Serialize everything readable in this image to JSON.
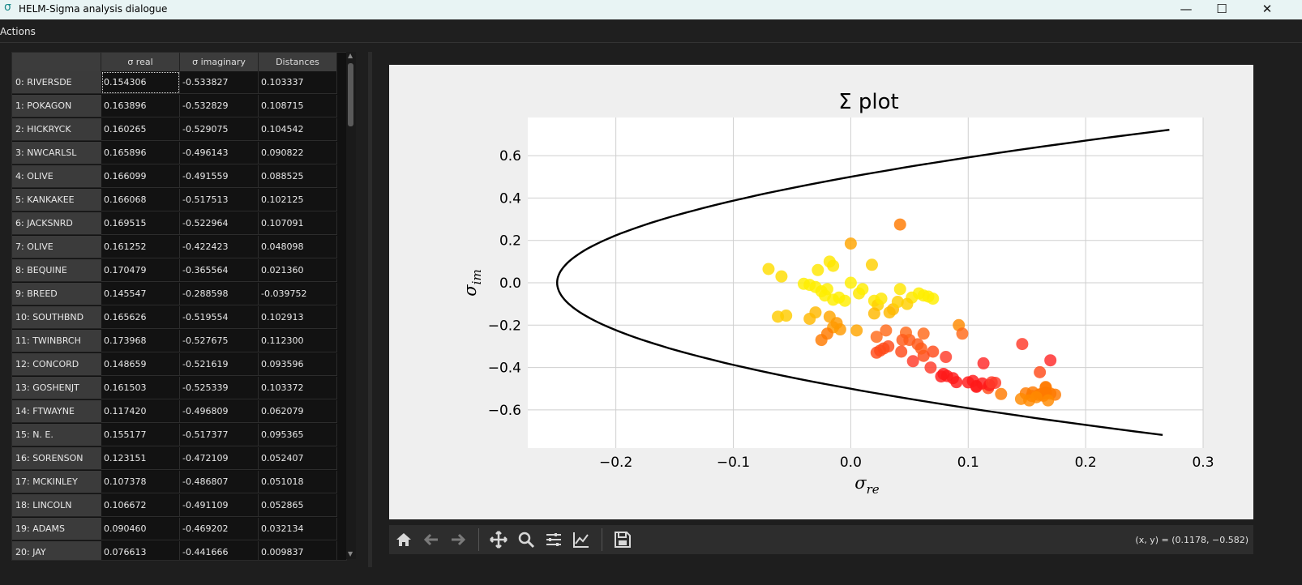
{
  "window": {
    "title": "HELM-Sigma analysis dialogue",
    "app_icon": "σ",
    "min_glyph": "—",
    "max_glyph": "☐",
    "close_glyph": "✕"
  },
  "menu": {
    "actions": "Actions"
  },
  "table": {
    "columns": [
      "σ real",
      "σ imaginary",
      "Distances"
    ],
    "rows": [
      {
        "label": "0: RIVERSDE",
        "re": "0.154306",
        "im": "-0.533827",
        "dist": "0.103337"
      },
      {
        "label": "1: POKAGON",
        "re": "0.163896",
        "im": "-0.532829",
        "dist": "0.108715"
      },
      {
        "label": "2: HICKRYCK",
        "re": "0.160265",
        "im": "-0.529075",
        "dist": "0.104542"
      },
      {
        "label": "3: NWCARLSL",
        "re": "0.165896",
        "im": "-0.496143",
        "dist": "0.090822"
      },
      {
        "label": "4: OLIVE",
        "re": "0.166099",
        "im": "-0.491559",
        "dist": "0.088525"
      },
      {
        "label": "5: KANKAKEE",
        "re": "0.166068",
        "im": "-0.517513",
        "dist": "0.102125"
      },
      {
        "label": "6: JACKSNRD",
        "re": "0.169515",
        "im": "-0.522964",
        "dist": "0.107091"
      },
      {
        "label": "7: OLIVE",
        "re": "0.161252",
        "im": "-0.422423",
        "dist": "0.048098"
      },
      {
        "label": "8: BEQUINE",
        "re": "0.170479",
        "im": "-0.365564",
        "dist": "0.021360"
      },
      {
        "label": "9: BREED",
        "re": "0.145547",
        "im": "-0.288598",
        "dist": "-0.039752"
      },
      {
        "label": "10: SOUTHBND",
        "re": "0.165626",
        "im": "-0.519554",
        "dist": "0.102913"
      },
      {
        "label": "11: TWINBRCH",
        "re": "0.173968",
        "im": "-0.527675",
        "dist": "0.112300"
      },
      {
        "label": "12: CONCORD",
        "re": "0.148659",
        "im": "-0.521619",
        "dist": "0.093596"
      },
      {
        "label": "13: GOSHENJT",
        "re": "0.161503",
        "im": "-0.525339",
        "dist": "0.103372"
      },
      {
        "label": "14: FTWAYNE",
        "re": "0.117420",
        "im": "-0.496809",
        "dist": "0.062079"
      },
      {
        "label": "15: N. E.",
        "re": "0.155177",
        "im": "-0.517377",
        "dist": "0.095365"
      },
      {
        "label": "16: SORENSON",
        "re": "0.123151",
        "im": "-0.472109",
        "dist": "0.052407"
      },
      {
        "label": "17: MCKINLEY",
        "re": "0.107378",
        "im": "-0.486807",
        "dist": "0.051018"
      },
      {
        "label": "18: LINCOLN",
        "re": "0.106672",
        "im": "-0.491109",
        "dist": "0.052865"
      },
      {
        "label": "19: ADAMS",
        "re": "0.090460",
        "im": "-0.469202",
        "dist": "0.032134"
      },
      {
        "label": "20: JAY",
        "re": "0.076613",
        "im": "-0.441666",
        "dist": "0.009837"
      }
    ]
  },
  "toolbar": {
    "coords": "(x, y) = (0.1178, −0.582)"
  },
  "chart_data": {
    "type": "scatter",
    "title": "Σ plot",
    "xlabel": "σ_re",
    "ylabel": "σ_im",
    "xlim": [
      -0.275,
      0.3
    ],
    "ylim": [
      -0.78,
      0.78
    ],
    "xticks": [
      -0.2,
      -0.1,
      0.0,
      0.1,
      0.2,
      0.3
    ],
    "xtick_labels": [
      "−0.2",
      "−0.1",
      "0.0",
      "0.1",
      "0.2",
      "0.3"
    ],
    "yticks": [
      -0.6,
      -0.4,
      -0.2,
      0.0,
      0.2,
      0.4,
      0.6
    ],
    "ytick_labels": [
      "−0.6",
      "−0.4",
      "−0.2",
      "0.0",
      "0.2",
      "0.4",
      "0.6"
    ],
    "grid": true,
    "boundary_curve": "σ_re = σ_im² − 0.25",
    "boundary_color": "#000000",
    "points": [
      {
        "x": 0.154,
        "y": -0.534,
        "c": "#ff7a00"
      },
      {
        "x": 0.164,
        "y": -0.533,
        "c": "#ff7a00"
      },
      {
        "x": 0.16,
        "y": -0.529,
        "c": "#ff7a00"
      },
      {
        "x": 0.166,
        "y": -0.496,
        "c": "#ff7a00"
      },
      {
        "x": 0.166,
        "y": -0.492,
        "c": "#ff7a00"
      },
      {
        "x": 0.166,
        "y": -0.518,
        "c": "#ff7a00"
      },
      {
        "x": 0.17,
        "y": -0.523,
        "c": "#ff7a00"
      },
      {
        "x": 0.161,
        "y": -0.422,
        "c": "#ff4a1a"
      },
      {
        "x": 0.17,
        "y": -0.366,
        "c": "#ff2a2a"
      },
      {
        "x": 0.146,
        "y": -0.289,
        "c": "#ff3a2a"
      },
      {
        "x": 0.166,
        "y": -0.52,
        "c": "#ff7a00"
      },
      {
        "x": 0.174,
        "y": -0.528,
        "c": "#ff7a00"
      },
      {
        "x": 0.149,
        "y": -0.522,
        "c": "#ff7a00"
      },
      {
        "x": 0.162,
        "y": -0.525,
        "c": "#ff7a00"
      },
      {
        "x": 0.117,
        "y": -0.497,
        "c": "#ff4a1a"
      },
      {
        "x": 0.155,
        "y": -0.517,
        "c": "#ff7a00"
      },
      {
        "x": 0.123,
        "y": -0.472,
        "c": "#ff3a2a"
      },
      {
        "x": 0.107,
        "y": -0.487,
        "c": "#ff1a1a"
      },
      {
        "x": 0.107,
        "y": -0.491,
        "c": "#ff1a1a"
      },
      {
        "x": 0.09,
        "y": -0.469,
        "c": "#ff1a1a"
      },
      {
        "x": 0.077,
        "y": -0.442,
        "c": "#ff1a1a"
      },
      {
        "x": 0.128,
        "y": -0.525,
        "c": "#ff7a00"
      },
      {
        "x": 0.145,
        "y": -0.548,
        "c": "#ff8a00"
      },
      {
        "x": 0.152,
        "y": -0.555,
        "c": "#ff8a00"
      },
      {
        "x": 0.168,
        "y": -0.555,
        "c": "#ff8a00"
      },
      {
        "x": 0.158,
        "y": -0.54,
        "c": "#ff8a00"
      },
      {
        "x": 0.113,
        "y": -0.38,
        "c": "#ff2a2a"
      },
      {
        "x": 0.1,
        "y": -0.47,
        "c": "#ff1a1a"
      },
      {
        "x": 0.104,
        "y": -0.463,
        "c": "#ff1a1a"
      },
      {
        "x": 0.112,
        "y": -0.475,
        "c": "#ff1a1a"
      },
      {
        "x": 0.118,
        "y": -0.483,
        "c": "#ff1a1a"
      },
      {
        "x": 0.12,
        "y": -0.47,
        "c": "#ff3a2a"
      },
      {
        "x": 0.087,
        "y": -0.45,
        "c": "#ff1a1a"
      },
      {
        "x": 0.082,
        "y": -0.44,
        "c": "#ff1a1a"
      },
      {
        "x": 0.079,
        "y": -0.43,
        "c": "#ff1a1a"
      },
      {
        "x": 0.081,
        "y": -0.35,
        "c": "#ff3a2a"
      },
      {
        "x": 0.068,
        "y": -0.4,
        "c": "#ff3a2a"
      },
      {
        "x": 0.07,
        "y": -0.325,
        "c": "#ff4a1a"
      },
      {
        "x": 0.062,
        "y": -0.345,
        "c": "#ff4a1a"
      },
      {
        "x": 0.06,
        "y": -0.31,
        "c": "#ff5a1a"
      },
      {
        "x": 0.057,
        "y": -0.29,
        "c": "#ff5a1a"
      },
      {
        "x": 0.053,
        "y": -0.37,
        "c": "#ff3a2a"
      },
      {
        "x": 0.05,
        "y": -0.27,
        "c": "#ff5a1a"
      },
      {
        "x": 0.047,
        "y": -0.235,
        "c": "#ff6a1a"
      },
      {
        "x": 0.043,
        "y": -0.325,
        "c": "#ff4a1a"
      },
      {
        "x": 0.044,
        "y": -0.27,
        "c": "#ff5a1a"
      },
      {
        "x": 0.062,
        "y": -0.24,
        "c": "#ff6a1a"
      },
      {
        "x": 0.032,
        "y": -0.3,
        "c": "#ff4a1a"
      },
      {
        "x": 0.028,
        "y": -0.31,
        "c": "#ff4a1a"
      },
      {
        "x": 0.025,
        "y": -0.32,
        "c": "#ff4a1a"
      },
      {
        "x": 0.022,
        "y": -0.33,
        "c": "#ff4a1a"
      },
      {
        "x": 0.03,
        "y": -0.225,
        "c": "#ff6a1a"
      },
      {
        "x": 0.022,
        "y": -0.255,
        "c": "#ff6a1a"
      },
      {
        "x": 0.092,
        "y": -0.2,
        "c": "#ff8a00"
      },
      {
        "x": 0.095,
        "y": -0.24,
        "c": "#ff6a1a"
      },
      {
        "x": 0.042,
        "y": 0.275,
        "c": "#ff7a00"
      },
      {
        "x": 0.0,
        "y": 0.185,
        "c": "#ffa500"
      },
      {
        "x": 0.005,
        "y": -0.225,
        "c": "#ffa500"
      },
      {
        "x": -0.009,
        "y": -0.22,
        "c": "#ff9a00"
      },
      {
        "x": -0.015,
        "y": -0.21,
        "c": "#ff9a00"
      },
      {
        "x": -0.02,
        "y": -0.24,
        "c": "#ff7a00"
      },
      {
        "x": -0.025,
        "y": -0.27,
        "c": "#ff7a00"
      },
      {
        "x": -0.018,
        "y": -0.16,
        "c": "#ffa500"
      },
      {
        "x": -0.012,
        "y": -0.19,
        "c": "#ff9a00"
      },
      {
        "x": -0.03,
        "y": -0.14,
        "c": "#ffb800"
      },
      {
        "x": -0.035,
        "y": -0.17,
        "c": "#ffb800"
      },
      {
        "x": -0.055,
        "y": -0.155,
        "c": "#ffcc00"
      },
      {
        "x": -0.062,
        "y": -0.16,
        "c": "#ffcc00"
      },
      {
        "x": -0.07,
        "y": 0.065,
        "c": "#ffdd00"
      },
      {
        "x": -0.059,
        "y": 0.03,
        "c": "#ffdd00"
      },
      {
        "x": -0.028,
        "y": 0.06,
        "c": "#ffe600"
      },
      {
        "x": -0.018,
        "y": 0.1,
        "c": "#ffe600"
      },
      {
        "x": -0.015,
        "y": 0.08,
        "c": "#ffe600"
      },
      {
        "x": -0.035,
        "y": -0.01,
        "c": "#ffee00"
      },
      {
        "x": -0.03,
        "y": -0.02,
        "c": "#ffee00"
      },
      {
        "x": -0.025,
        "y": -0.04,
        "c": "#ffee00"
      },
      {
        "x": -0.022,
        "y": -0.06,
        "c": "#ffee00"
      },
      {
        "x": -0.015,
        "y": -0.08,
        "c": "#ffee00"
      },
      {
        "x": -0.01,
        "y": -0.07,
        "c": "#ffee00"
      },
      {
        "x": -0.005,
        "y": -0.085,
        "c": "#ffee00"
      },
      {
        "x": 0.0,
        "y": 0.0,
        "c": "#ffee00"
      },
      {
        "x": 0.007,
        "y": -0.05,
        "c": "#ffe600"
      },
      {
        "x": 0.018,
        "y": 0.085,
        "c": "#ffd000"
      },
      {
        "x": 0.02,
        "y": -0.085,
        "c": "#ffe600"
      },
      {
        "x": 0.023,
        "y": -0.105,
        "c": "#ffd000"
      },
      {
        "x": 0.026,
        "y": -0.075,
        "c": "#ffe600"
      },
      {
        "x": 0.02,
        "y": -0.145,
        "c": "#ffb800"
      },
      {
        "x": 0.033,
        "y": -0.14,
        "c": "#ffb800"
      },
      {
        "x": 0.036,
        "y": -0.125,
        "c": "#ffb800"
      },
      {
        "x": 0.04,
        "y": -0.09,
        "c": "#ffd000"
      },
      {
        "x": 0.042,
        "y": -0.03,
        "c": "#ffe600"
      },
      {
        "x": 0.052,
        "y": -0.07,
        "c": "#ffe600"
      },
      {
        "x": 0.058,
        "y": -0.05,
        "c": "#ffee00"
      },
      {
        "x": 0.062,
        "y": -0.06,
        "c": "#ffee00"
      },
      {
        "x": 0.066,
        "y": -0.065,
        "c": "#ffee00"
      },
      {
        "x": 0.07,
        "y": -0.075,
        "c": "#ffee00"
      },
      {
        "x": 0.048,
        "y": -0.1,
        "c": "#ffd000"
      },
      {
        "x": -0.04,
        "y": -0.005,
        "c": "#ffee00"
      },
      {
        "x": -0.02,
        "y": -0.03,
        "c": "#ffee00"
      },
      {
        "x": 0.01,
        "y": -0.03,
        "c": "#ffee00"
      }
    ]
  }
}
